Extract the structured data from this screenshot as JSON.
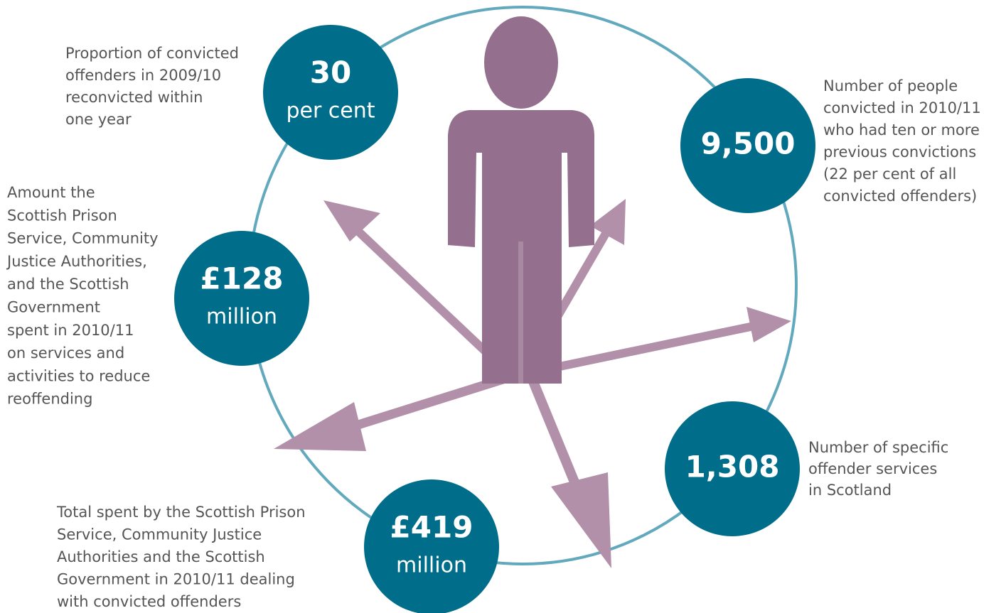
{
  "items": [
    {
      "value": "30",
      "unit": "per cent",
      "description": [
        "Proportion of convicted",
        "offenders in 2009/10",
        "reconvicted within",
        "one year"
      ]
    },
    {
      "value": "9,500",
      "description": [
        "Number of people",
        "convicted in 2010/11",
        "who had ten or more",
        "previous convictions",
        "(22 per cent of all",
        "convicted offenders)"
      ]
    },
    {
      "value": "£128",
      "unit": "million",
      "description": [
        "Amount the",
        "Scottish Prison",
        "Service, Community",
        "Justice Authorities,",
        "and the Scottish",
        "Government",
        "spent in 2010/11",
        "on services and",
        "activities to reduce",
        "reoffending"
      ]
    },
    {
      "value": "1,308",
      "description": [
        "Number of specific",
        "offender services",
        "in Scotland"
      ]
    },
    {
      "value": "£419",
      "unit": "million",
      "description": [
        "Total spent by the Scottish Prison",
        "Service, Community Justice",
        "Authorities and the Scottish",
        "Government in 2010/11 dealing",
        "with convicted offenders"
      ]
    }
  ]
}
